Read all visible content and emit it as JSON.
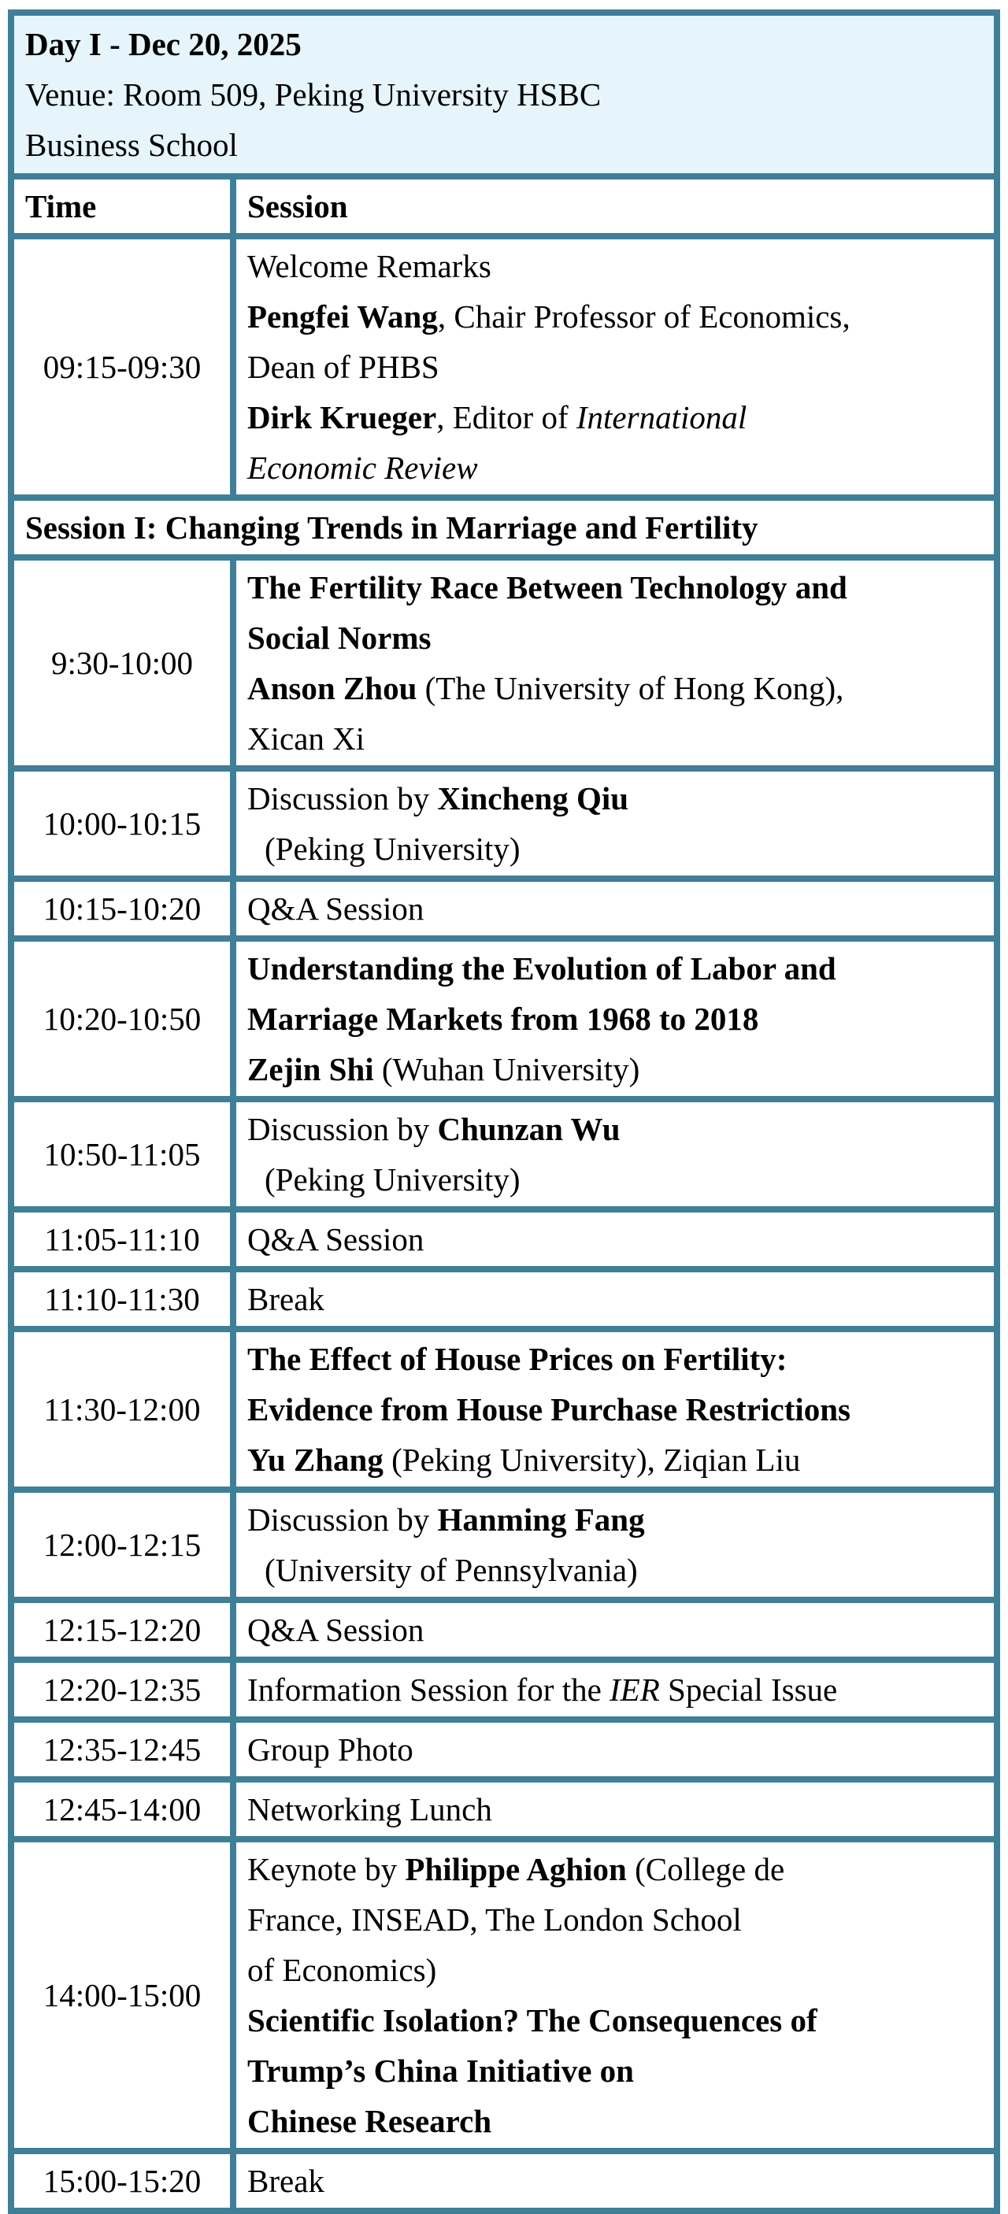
{
  "header": {
    "day": "Day I - Dec 20, 2025",
    "venue_lines": [
      "Venue: Room 509, Peking University HSBC",
      "Business School"
    ]
  },
  "columns": {
    "time": "Time",
    "session": "Session"
  },
  "colors": {
    "border": "#3f7f97",
    "header_bg": "#e6f4fb"
  },
  "rows": [
    {
      "time": "09:15-09:30",
      "lines": [
        [
          {
            "t": "Welcome Remarks"
          }
        ],
        [
          {
            "t": "Pengfei Wang",
            "b": 1
          },
          {
            "t": ", Chair Professor of Economics,"
          }
        ],
        [
          {
            "t": "Dean of PHBS"
          }
        ],
        [
          {
            "t": "Dirk Krueger",
            "b": 1
          },
          {
            "t": ", Editor of "
          },
          {
            "t": "International",
            "i": 1
          }
        ],
        [
          {
            "t": "Economic Review",
            "i": 1
          }
        ]
      ]
    },
    {
      "section": "Session I: Changing Trends in Marriage and Fertility"
    },
    {
      "time": "9:30-10:00",
      "lines": [
        [
          {
            "t": "The Fertility Race Between Technology and",
            "b": 1
          }
        ],
        [
          {
            "t": "Social Norms",
            "b": 1
          }
        ],
        [
          {
            "t": "Anson Zhou",
            "b": 1
          },
          {
            "t": " (The University of Hong Kong),"
          }
        ],
        [
          {
            "t": "Xican Xi"
          }
        ]
      ]
    },
    {
      "time": "10:00-10:15",
      "lines": [
        [
          {
            "t": "Discussion by "
          },
          {
            "t": "Xincheng Qiu",
            "b": 1
          }
        ],
        [
          {
            "t": "(Peking University)",
            "ind": 1
          }
        ]
      ]
    },
    {
      "time": "10:15-10:20",
      "lines": [
        [
          {
            "t": "Q&A Session"
          }
        ]
      ]
    },
    {
      "time": "10:20-10:50",
      "lines": [
        [
          {
            "t": "Understanding the Evolution of Labor and",
            "b": 1
          }
        ],
        [
          {
            "t": "Marriage Markets from 1968 to 2018",
            "b": 1
          }
        ],
        [
          {
            "t": "Zejin Shi",
            "b": 1
          },
          {
            "t": " (Wuhan University)"
          }
        ]
      ]
    },
    {
      "time": "10:50-11:05",
      "lines": [
        [
          {
            "t": "Discussion by "
          },
          {
            "t": "Chunzan Wu",
            "b": 1
          }
        ],
        [
          {
            "t": "(Peking University)",
            "ind": 1
          }
        ]
      ]
    },
    {
      "time": "11:05-11:10",
      "lines": [
        [
          {
            "t": "Q&A Session"
          }
        ]
      ]
    },
    {
      "time": "11:10-11:30",
      "lines": [
        [
          {
            "t": "Break"
          }
        ]
      ]
    },
    {
      "time": "11:30-12:00",
      "lines": [
        [
          {
            "t": "The Effect of House Prices on Fertility:",
            "b": 1
          }
        ],
        [
          {
            "t": "Evidence from House Purchase Restrictions",
            "b": 1
          }
        ],
        [
          {
            "t": "Yu Zhang",
            "b": 1
          },
          {
            "t": " (Peking University), Ziqian Liu"
          }
        ]
      ]
    },
    {
      "time": "12:00-12:15",
      "lines": [
        [
          {
            "t": "Discussion by "
          },
          {
            "t": "Hanming Fang",
            "b": 1
          }
        ],
        [
          {
            "t": "(University of Pennsylvania)",
            "ind": 1
          }
        ]
      ]
    },
    {
      "time": "12:15-12:20",
      "lines": [
        [
          {
            "t": "Q&A Session"
          }
        ]
      ]
    },
    {
      "time": "12:20-12:35",
      "lines": [
        [
          {
            "t": "Information Session for the "
          },
          {
            "t": "IER",
            "i": 1
          },
          {
            "t": " Special Issue"
          }
        ]
      ]
    },
    {
      "time": "12:35-12:45",
      "lines": [
        [
          {
            "t": "Group Photo"
          }
        ]
      ]
    },
    {
      "time": "12:45-14:00",
      "lines": [
        [
          {
            "t": "Networking Lunch"
          }
        ]
      ]
    },
    {
      "time": "14:00-15:00",
      "lines": [
        [
          {
            "t": "Keynote by "
          },
          {
            "t": "Philippe Aghion",
            "b": 1
          },
          {
            "t": " (College de"
          }
        ],
        [
          {
            "t": "France, INSEAD, The London School"
          }
        ],
        [
          {
            "t": "of Economics)"
          }
        ],
        [
          {
            "t": "Scientific Isolation? The Consequences of",
            "b": 1
          }
        ],
        [
          {
            "t": "Trump’s China Initiative on",
            "b": 1
          }
        ],
        [
          {
            "t": "Chinese Research",
            "b": 1
          }
        ]
      ]
    },
    {
      "time": "15:00-15:20",
      "lines": [
        [
          {
            "t": "Break"
          }
        ]
      ]
    }
  ]
}
